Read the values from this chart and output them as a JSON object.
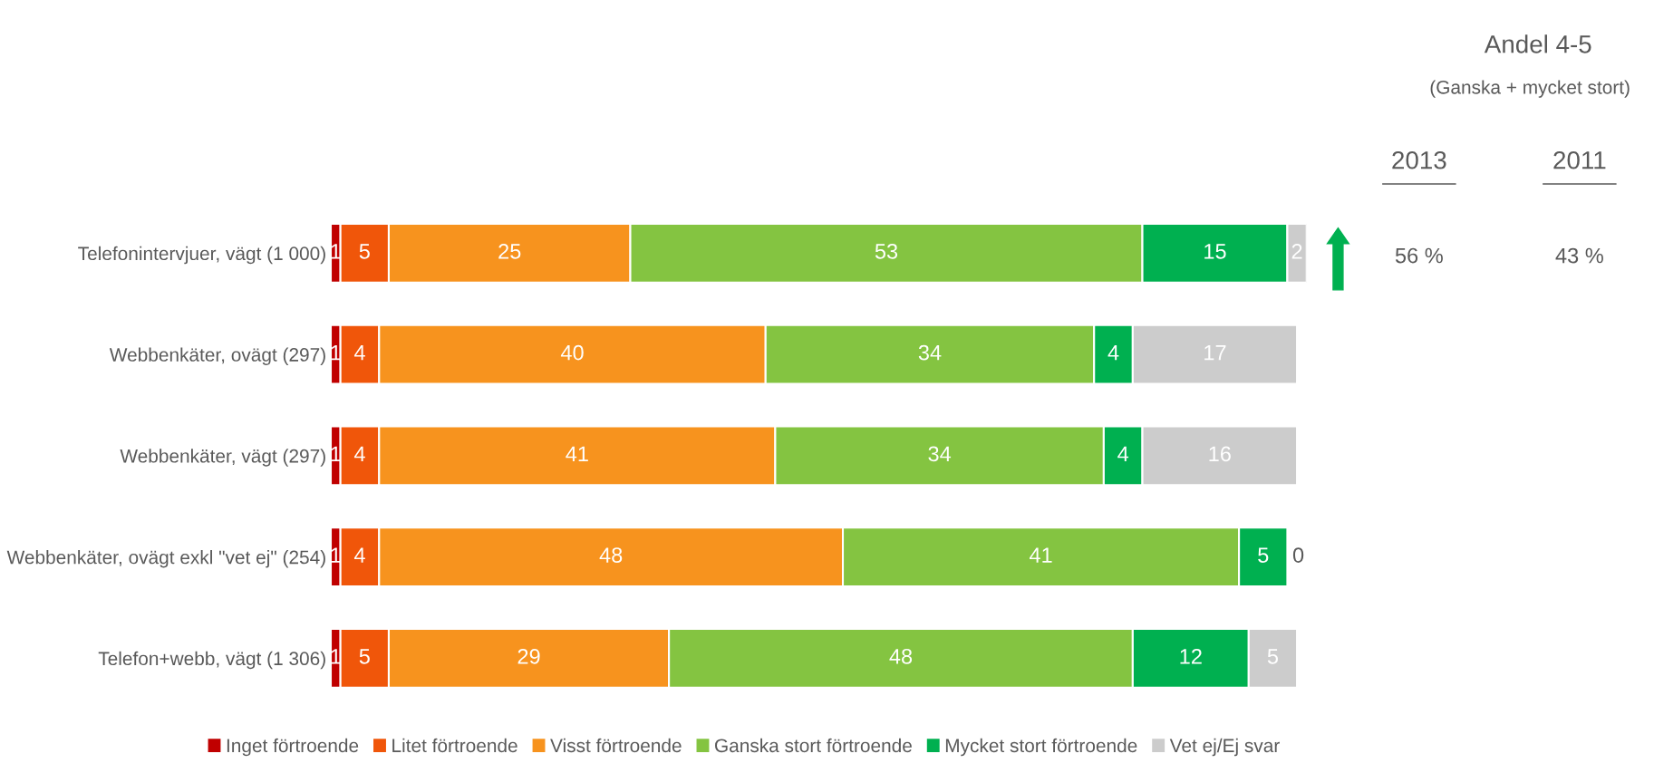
{
  "chart_data": {
    "type": "bar",
    "orientation": "horizontal",
    "stacked": true,
    "data_labels": true,
    "grid": false,
    "legend": "bottom",
    "tick_labels": "y",
    "xlim": [
      0,
      101
    ],
    "categories": [
      "Telefonintervjuer, vägt (1 000)",
      "Webbenkäter, ovägt (297)",
      "Webbenkäter, vägt (297)",
      "Webbenkäter, ovägt exkl \"vet ej\" (254)",
      "Telefon+webb, vägt (1 306)"
    ],
    "series": [
      {
        "name": "Inget förtroende",
        "color": "#c00000",
        "values": [
          1,
          1,
          1,
          1,
          1
        ]
      },
      {
        "name": "Litet förtroende",
        "color": "#f0560a",
        "values": [
          5,
          4,
          4,
          4,
          5
        ]
      },
      {
        "name": "Visst förtroende",
        "color": "#f7931e",
        "values": [
          25,
          40,
          41,
          48,
          29
        ]
      },
      {
        "name": "Ganska stort förtroende",
        "color": "#84c441",
        "values": [
          53,
          34,
          34,
          41,
          48
        ]
      },
      {
        "name": "Mycket stort förtroende",
        "color": "#00b050",
        "values": [
          15,
          4,
          4,
          5,
          12
        ]
      },
      {
        "name": "Vet ej/Ej svar",
        "color": "#cccccc",
        "values": [
          2,
          17,
          16,
          0,
          5
        ]
      }
    ],
    "annotations": [
      "Andel 4-5",
      "(Ganska + mycket stort)",
      "2013",
      "2011",
      "56 %",
      "43 %"
    ]
  }
}
